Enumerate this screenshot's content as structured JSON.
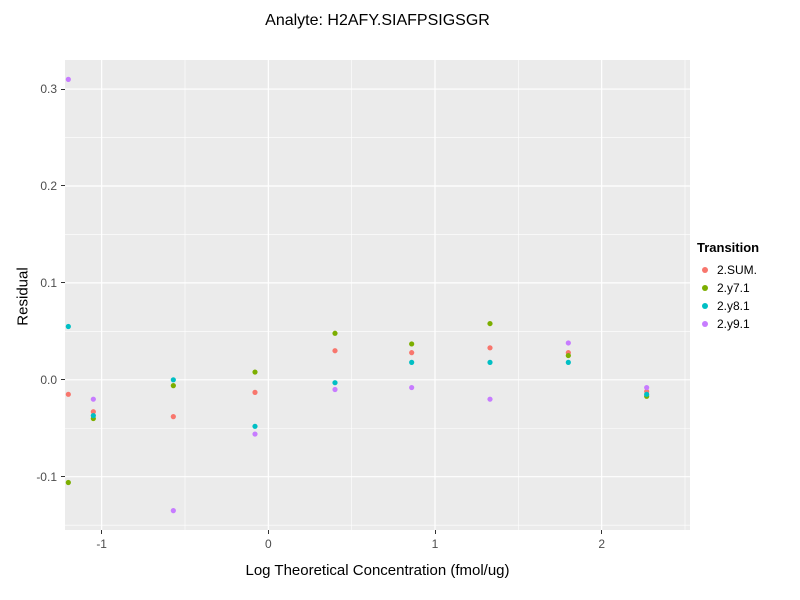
{
  "figure": {
    "title": "Analyte: H2AFY.SIAFPSIGSGR"
  },
  "chart_data": {
    "type": "scatter",
    "title": "Analyte: H2AFY.SIAFPSIGSGR",
    "xlabel": "Log Theoretical Concentration (fmol/ug)",
    "ylabel": "Residual",
    "xlim": [
      -1.22,
      2.53
    ],
    "ylim": [
      -0.155,
      0.33
    ],
    "grid": true,
    "panel_background": "#ebebeb",
    "gridline_color": "#ffffff",
    "tick_label_color": "#4d4d4d",
    "x_ticks": [
      -1,
      0,
      1,
      2
    ],
    "x_tick_labels": [
      "-1",
      "0",
      "1",
      "2"
    ],
    "y_ticks": [
      -0.1,
      0.0,
      0.1,
      0.2,
      0.3
    ],
    "y_tick_labels": [
      "-0.1",
      "0.0",
      "0.1",
      "0.2",
      "0.3"
    ],
    "x_minor": [
      -0.5,
      0.5,
      1.5,
      2.5
    ],
    "y_minor": [
      -0.15,
      -0.05,
      0.05,
      0.15,
      0.25
    ],
    "legend_title": "Transition",
    "legend_position": "right",
    "series": [
      {
        "name": "2.SUM.",
        "color": "#F8766D",
        "points": [
          [
            -1.2,
            -0.015
          ],
          [
            -1.05,
            -0.033
          ],
          [
            -0.57,
            -0.038
          ],
          [
            -0.08,
            -0.013
          ],
          [
            0.4,
            0.03
          ],
          [
            0.86,
            0.028
          ],
          [
            1.33,
            0.033
          ],
          [
            1.8,
            0.028
          ],
          [
            2.27,
            -0.012
          ]
        ]
      },
      {
        "name": "2.y7.1",
        "color": "#7CAE00",
        "points": [
          [
            -1.2,
            -0.106
          ],
          [
            -1.05,
            -0.04
          ],
          [
            -0.57,
            -0.006
          ],
          [
            -0.08,
            0.008
          ],
          [
            0.4,
            0.048
          ],
          [
            0.86,
            0.037
          ],
          [
            1.33,
            0.058
          ],
          [
            1.8,
            0.025
          ],
          [
            2.27,
            -0.017
          ]
        ]
      },
      {
        "name": "2.y8.1",
        "color": "#00BFC4",
        "points": [
          [
            -1.2,
            0.055
          ],
          [
            -1.05,
            -0.037
          ],
          [
            -0.57,
            0.0
          ],
          [
            -0.08,
            -0.048
          ],
          [
            0.4,
            -0.003
          ],
          [
            0.86,
            0.018
          ],
          [
            1.33,
            0.018
          ],
          [
            1.8,
            0.018
          ],
          [
            2.27,
            -0.015
          ]
        ]
      },
      {
        "name": "2.y9.1",
        "color": "#C77CFF",
        "points": [
          [
            -1.2,
            0.31
          ],
          [
            -1.05,
            -0.02
          ],
          [
            -0.57,
            -0.135
          ],
          [
            -0.08,
            -0.056
          ],
          [
            0.4,
            -0.01
          ],
          [
            0.86,
            -0.008
          ],
          [
            1.33,
            -0.02
          ],
          [
            1.8,
            0.038
          ],
          [
            2.27,
            -0.008
          ]
        ]
      }
    ]
  }
}
